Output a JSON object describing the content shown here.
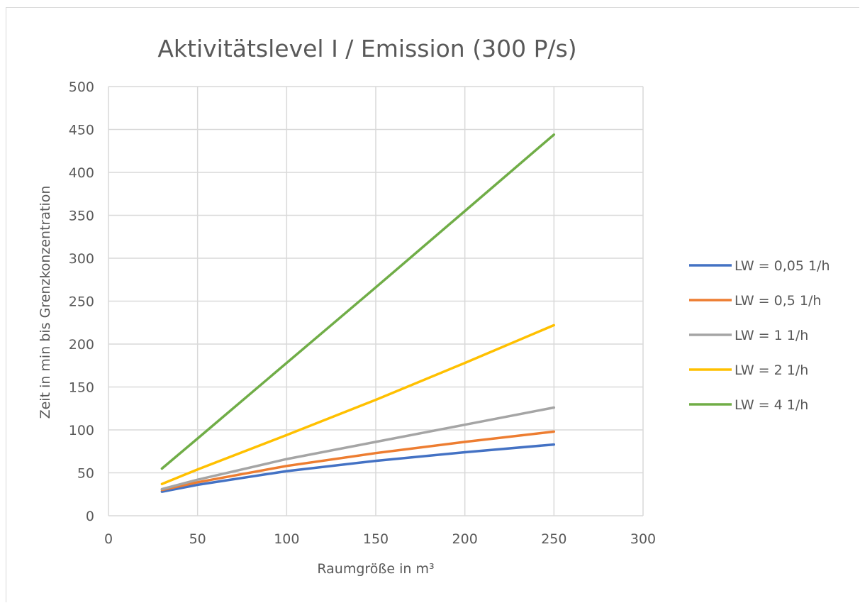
{
  "chart_data": {
    "type": "line",
    "title": "Aktivitätslevel I  /  Emission  (300 P/s)",
    "xlabel": "Raumgröße in m³",
    "ylabel": "Zeit in min bis Grenzkonzentration",
    "xlim": [
      0,
      300
    ],
    "ylim": [
      0,
      500
    ],
    "xticks": [
      0,
      50,
      100,
      150,
      200,
      250,
      300
    ],
    "yticks": [
      0,
      50,
      100,
      150,
      200,
      250,
      300,
      350,
      400,
      450,
      500
    ],
    "grid": true,
    "legend_position": "right",
    "x": [
      30,
      50,
      100,
      150,
      200,
      250
    ],
    "series": [
      {
        "name": "LW = 0,05 1/h",
        "color": "#4472c4",
        "values": [
          28,
          36,
          52,
          64,
          74,
          83
        ]
      },
      {
        "name": "LW = 0,5 1/h",
        "color": "#ed7d31",
        "values": [
          30,
          39,
          58,
          73,
          86,
          98
        ]
      },
      {
        "name": "LW = 1 1/h",
        "color": "#a5a5a5",
        "values": [
          31,
          42,
          66,
          86,
          106,
          126
        ]
      },
      {
        "name": "LW = 2 1/h",
        "color": "#ffc000",
        "values": [
          37,
          54,
          94,
          135,
          178,
          222
        ]
      },
      {
        "name": "LW = 4 1/h",
        "color": "#70ad47",
        "values": [
          55,
          90,
          178,
          266,
          355,
          444
        ]
      }
    ]
  }
}
